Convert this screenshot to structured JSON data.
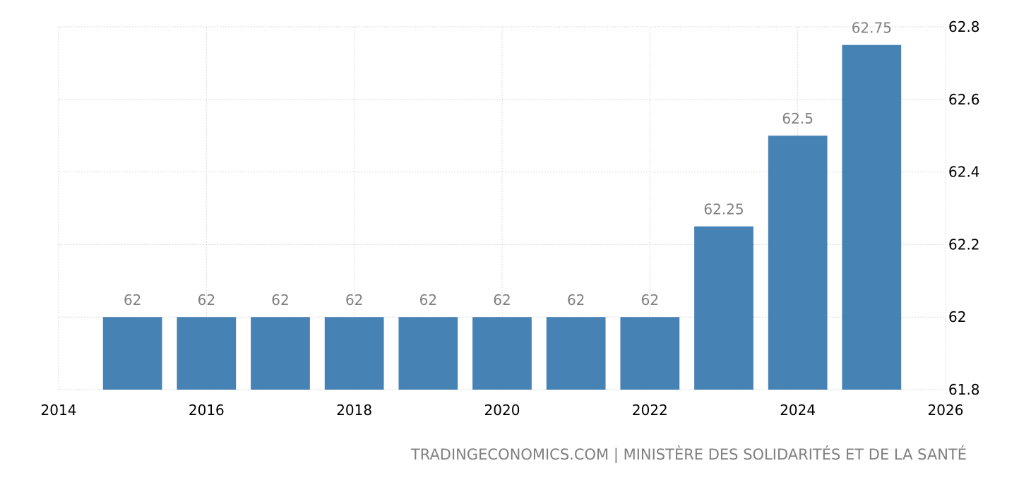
{
  "chart_data": {
    "type": "bar",
    "x": [
      2015,
      2016,
      2017,
      2018,
      2019,
      2020,
      2021,
      2022,
      2023,
      2024,
      2025
    ],
    "values": [
      62,
      62,
      62,
      62,
      62,
      62,
      62,
      62,
      62.25,
      62.5,
      62.75
    ],
    "data_labels": [
      "62",
      "62",
      "62",
      "62",
      "62",
      "62",
      "62",
      "62",
      "62.25",
      "62.5",
      "62.75"
    ],
    "xlim": [
      2014,
      2026
    ],
    "ylim": [
      61.8,
      62.8
    ],
    "x_ticks": [
      "2014",
      "2016",
      "2018",
      "2020",
      "2022",
      "2024",
      "2026"
    ],
    "y_ticks": [
      "61.8",
      "62",
      "62.2",
      "62.4",
      "62.6",
      "62.8"
    ],
    "y_axis_side": "right",
    "grid": true,
    "bar_color": "#4682b4",
    "title": "",
    "xlabel": "",
    "ylabel": ""
  },
  "source": "TRADINGECONOMICS.COM | MINISTÈRE DES SOLIDARITÉS ET DE LA SANTÉ"
}
